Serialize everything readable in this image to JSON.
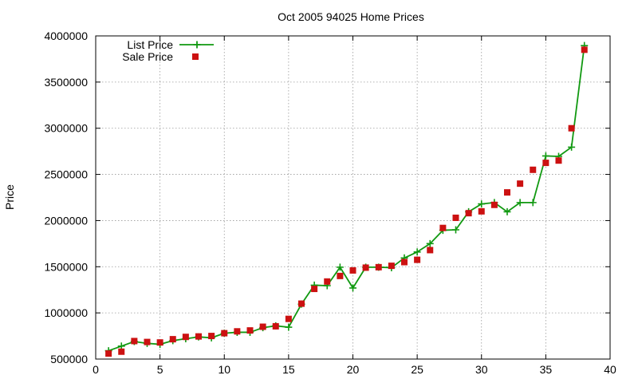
{
  "chart_data": {
    "type": "line",
    "title": "Oct 2005 94025 Home Prices",
    "xlabel": "",
    "ylabel": "Price",
    "xlim": [
      0,
      40
    ],
    "ylim": [
      500000,
      4000000
    ],
    "xticks": [
      0,
      5,
      10,
      15,
      20,
      25,
      30,
      35,
      40
    ],
    "yticks": [
      500000,
      1000000,
      1500000,
      2000000,
      2500000,
      3000000,
      3500000,
      4000000
    ],
    "xtick_labels": [
      "0",
      "5",
      "10",
      "15",
      "20",
      "25",
      "30",
      "35",
      "40"
    ],
    "ytick_labels": [
      "500000",
      "1000000",
      "1500000",
      "2000000",
      "2500000",
      "3000000",
      "3500000",
      "4000000"
    ],
    "grid": true,
    "legend_position": "top-left",
    "series": [
      {
        "name": "List Price",
        "style": "linespoints",
        "marker": "plus",
        "color": "#119911",
        "x": [
          1,
          2,
          3,
          4,
          5,
          6,
          7,
          8,
          9,
          10,
          11,
          12,
          13,
          14,
          15,
          16,
          17,
          18,
          19,
          20,
          21,
          22,
          23,
          24,
          25,
          26,
          27,
          28,
          29,
          30,
          31,
          32,
          33,
          34,
          35,
          36,
          37,
          38
        ],
        "y": [
          590000,
          640000,
          690000,
          670000,
          660000,
          700000,
          720000,
          740000,
          730000,
          780000,
          790000,
          790000,
          840000,
          860000,
          845000,
          1095000,
          1300000,
          1295000,
          1495000,
          1270000,
          1495000,
          1495000,
          1490000,
          1595000,
          1660000,
          1750000,
          1895000,
          1900000,
          2095000,
          2180000,
          2195000,
          2095000,
          2195000,
          2195000,
          2700000,
          2695000,
          2795000,
          3895000
        ]
      },
      {
        "name": "Sale Price",
        "style": "points",
        "marker": "square",
        "color": "#cc1111",
        "x": [
          1,
          2,
          3,
          4,
          5,
          6,
          7,
          8,
          9,
          10,
          11,
          12,
          13,
          14,
          15,
          16,
          17,
          18,
          19,
          20,
          21,
          22,
          23,
          24,
          25,
          26,
          27,
          28,
          29,
          30,
          31,
          32,
          33,
          34,
          35,
          36,
          37,
          38
        ],
        "y": [
          560000,
          580000,
          695000,
          685000,
          680000,
          715000,
          740000,
          745000,
          750000,
          780000,
          800000,
          810000,
          850000,
          855000,
          935000,
          1100000,
          1260000,
          1340000,
          1400000,
          1460000,
          1490000,
          1495000,
          1510000,
          1550000,
          1575000,
          1680000,
          1920000,
          2030000,
          2080000,
          2100000,
          2170000,
          2305000,
          2400000,
          2550000,
          2625000,
          2650000,
          3000000,
          3850000
        ]
      }
    ]
  }
}
